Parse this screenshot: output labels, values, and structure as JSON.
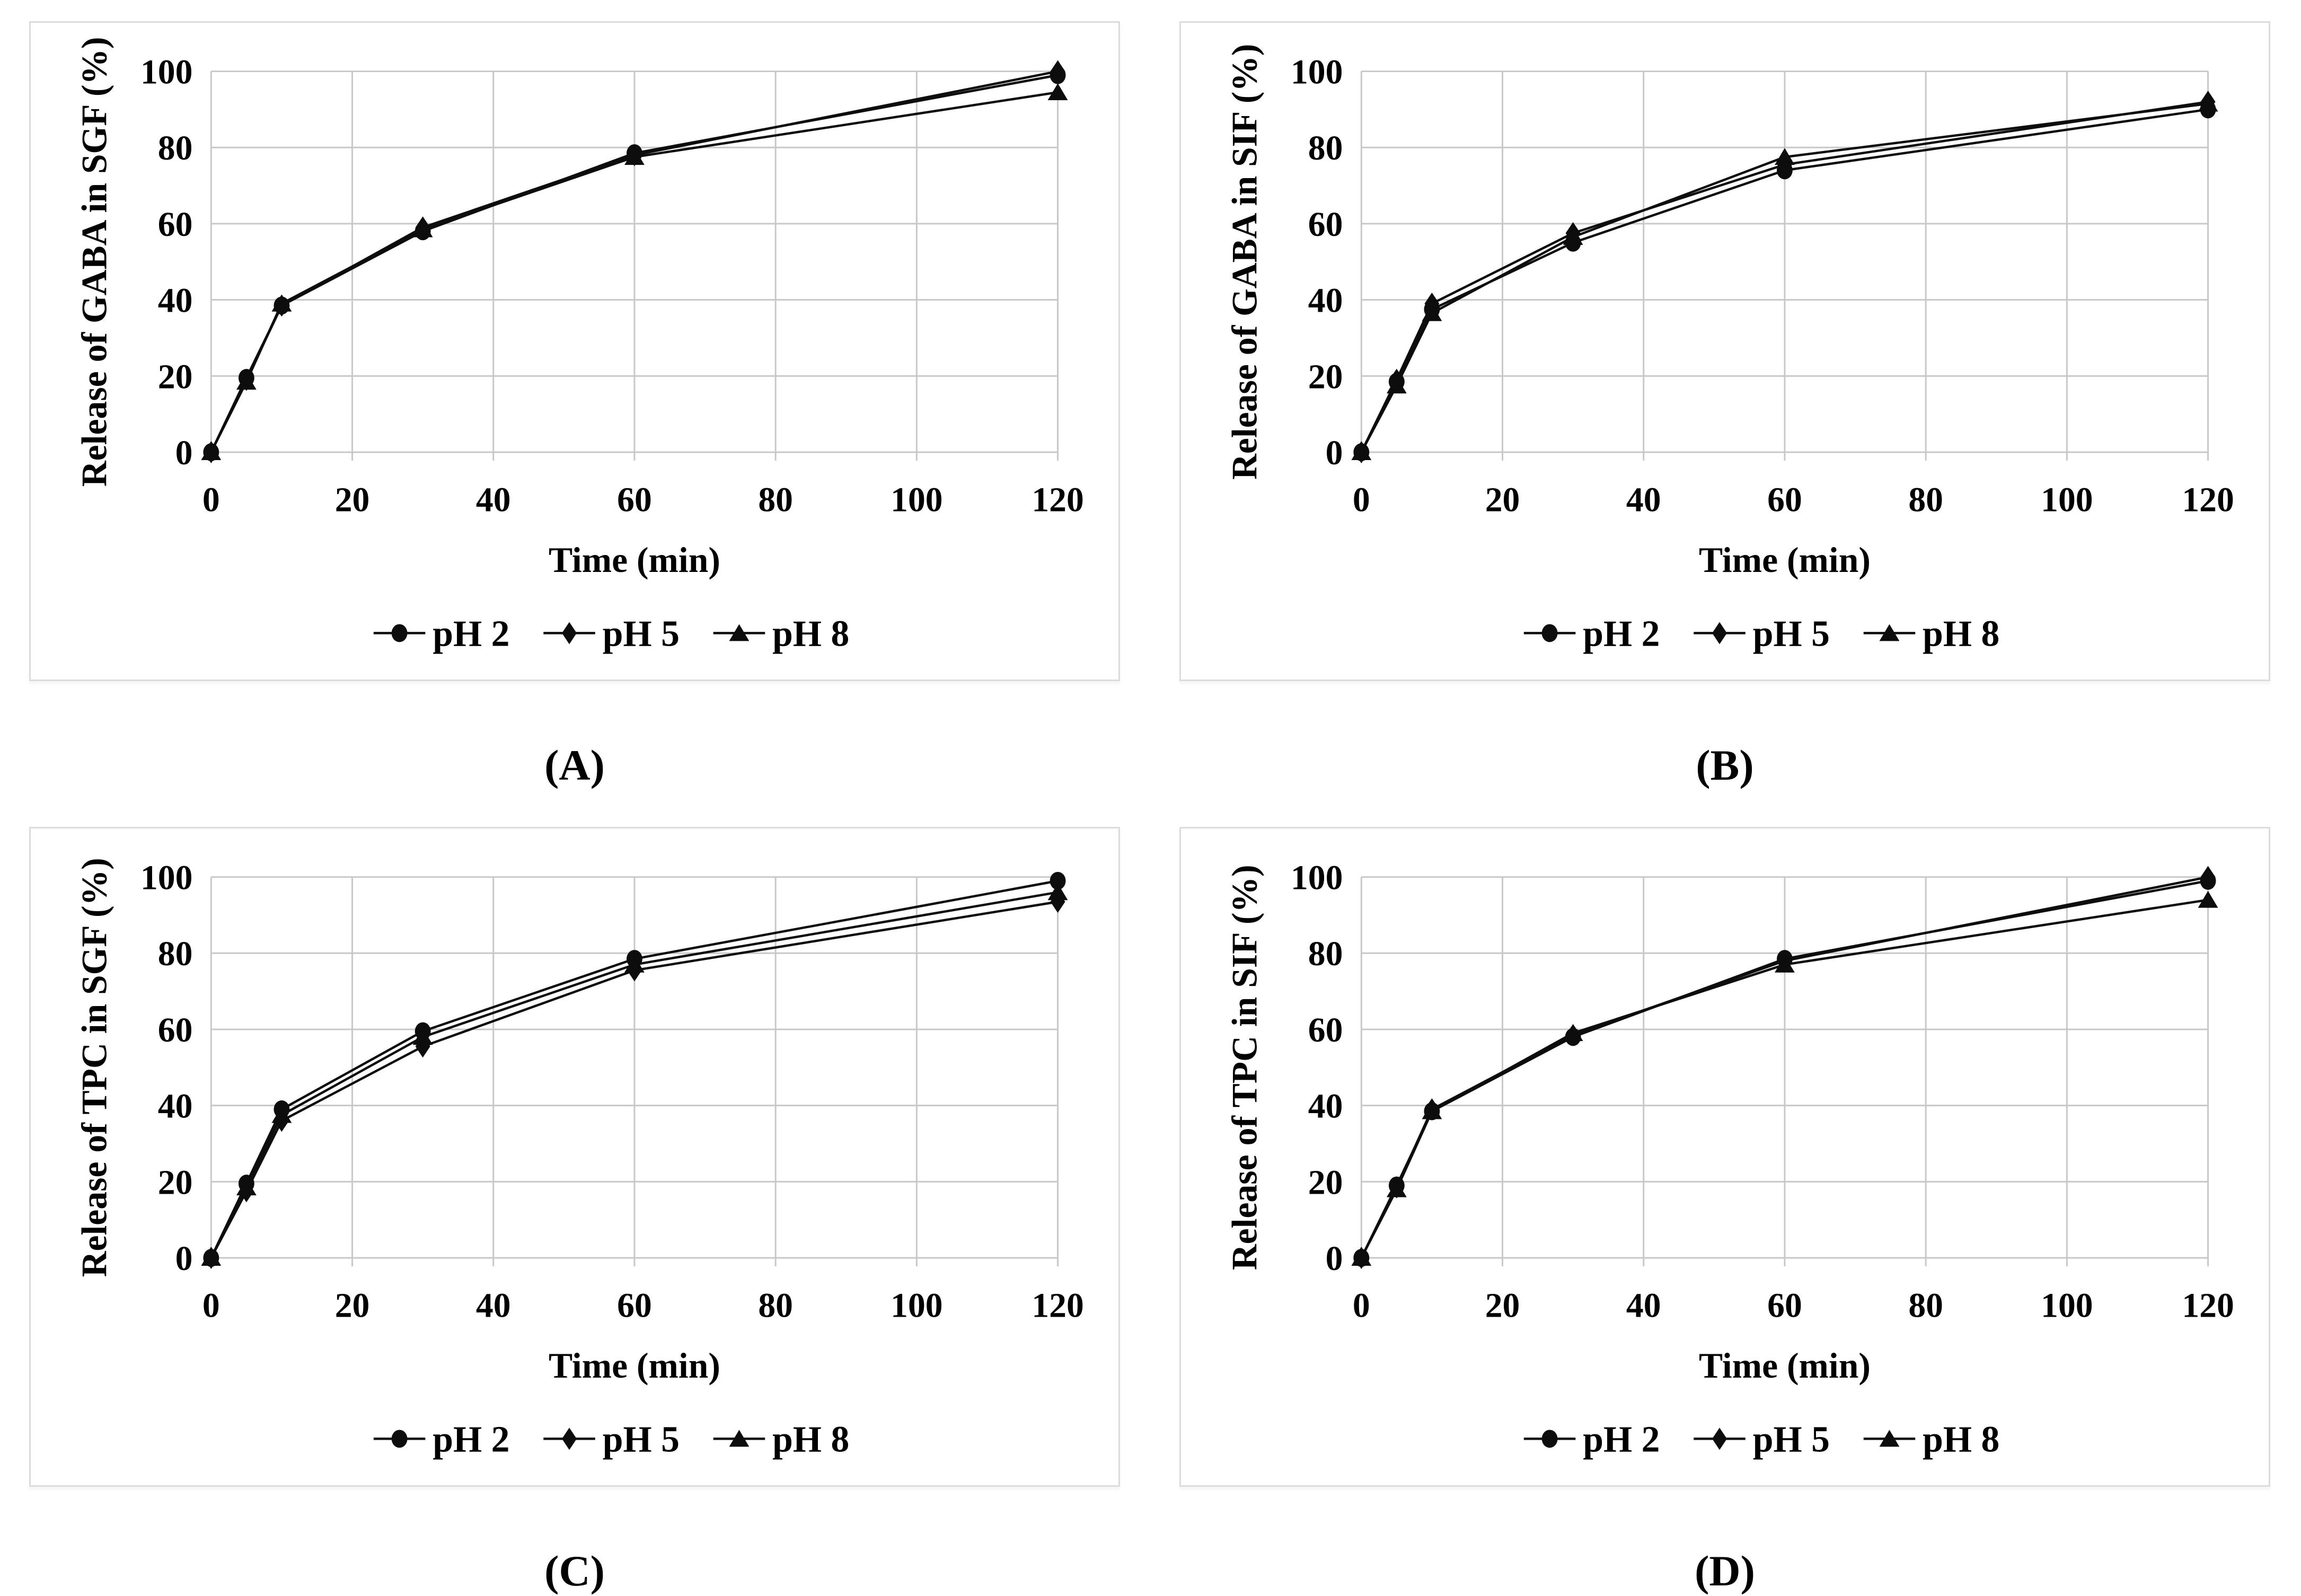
{
  "colors": {
    "line": "#0d0d0d",
    "grid": "#c8c8c8",
    "panel_border": "#dcdcdc",
    "text": "#000000",
    "background": "#ffffff"
  },
  "chart_data": [
    {
      "panel": "A",
      "type": "line",
      "title": "",
      "xlabel": "Time (min)",
      "ylabel": "Release of GABA in SGF (%)",
      "x": [
        0,
        5,
        10,
        30,
        60,
        120
      ],
      "xlim": [
        0,
        120
      ],
      "ylim": [
        0,
        100
      ],
      "xticks": [
        0,
        20,
        40,
        60,
        80,
        100,
        120
      ],
      "yticks": [
        0,
        20,
        40,
        60,
        80,
        100
      ],
      "grid": true,
      "legend_position": "bottom",
      "series": [
        {
          "name": "pH 2",
          "marker": "circle",
          "values": [
            0,
            19.5,
            38.5,
            58,
            78.5,
            99
          ]
        },
        {
          "name": "pH 5",
          "marker": "diamond",
          "values": [
            0,
            19,
            38.5,
            59,
            78,
            100
          ]
        },
        {
          "name": "pH 8",
          "marker": "triangle",
          "values": [
            0,
            18.5,
            39,
            58.5,
            77.5,
            94.5
          ]
        }
      ],
      "caption": "(A)"
    },
    {
      "panel": "B",
      "type": "line",
      "title": "",
      "xlabel": "Time (min)",
      "ylabel": "Release of GABA in SIF (%)",
      "x": [
        0,
        5,
        10,
        30,
        60,
        120
      ],
      "xlim": [
        0,
        120
      ],
      "ylim": [
        0,
        100
      ],
      "xticks": [
        0,
        20,
        40,
        60,
        80,
        100,
        120
      ],
      "yticks": [
        0,
        20,
        40,
        60,
        80,
        100
      ],
      "grid": true,
      "legend_position": "bottom",
      "series": [
        {
          "name": "pH 2",
          "marker": "circle",
          "values": [
            0,
            18.5,
            37.5,
            55,
            74,
            90
          ]
        },
        {
          "name": "pH 5",
          "marker": "diamond",
          "values": [
            0,
            19,
            39,
            57.5,
            75.5,
            92
          ]
        },
        {
          "name": "pH 8",
          "marker": "triangle",
          "values": [
            0,
            17.5,
            36.5,
            56.5,
            77.5,
            91.5
          ]
        }
      ],
      "caption": "(B)"
    },
    {
      "panel": "C",
      "type": "line",
      "title": "",
      "xlabel": "Time (min)",
      "ylabel": "Release of TPC in SGF (%)",
      "x": [
        0,
        5,
        10,
        30,
        60,
        120
      ],
      "xlim": [
        0,
        120
      ],
      "ylim": [
        0,
        100
      ],
      "xticks": [
        0,
        20,
        40,
        60,
        80,
        100,
        120
      ],
      "yticks": [
        0,
        20,
        40,
        60,
        80,
        100
      ],
      "grid": true,
      "legend_position": "bottom",
      "series": [
        {
          "name": "pH 2",
          "marker": "circle",
          "values": [
            0,
            19.5,
            39,
            59.5,
            78.5,
            99
          ]
        },
        {
          "name": "pH 5",
          "marker": "diamond",
          "values": [
            0,
            17.5,
            36,
            55.5,
            75.5,
            93.5
          ]
        },
        {
          "name": "pH 8",
          "marker": "triangle",
          "values": [
            0,
            18.5,
            37.5,
            58,
            77,
            96
          ]
        }
      ],
      "caption": "(C)"
    },
    {
      "panel": "D",
      "type": "line",
      "title": "",
      "xlabel": "Time (min)",
      "ylabel": "Release of TPC in SIF (%)",
      "x": [
        0,
        5,
        10,
        30,
        60,
        120
      ],
      "xlim": [
        0,
        120
      ],
      "ylim": [
        0,
        100
      ],
      "xticks": [
        0,
        20,
        40,
        60,
        80,
        100,
        120
      ],
      "yticks": [
        0,
        20,
        40,
        60,
        80,
        100
      ],
      "grid": true,
      "legend_position": "bottom",
      "series": [
        {
          "name": "pH 2",
          "marker": "circle",
          "values": [
            0,
            19,
            38.5,
            58,
            78.5,
            99
          ]
        },
        {
          "name": "pH 5",
          "marker": "diamond",
          "values": [
            0,
            18.5,
            39,
            58.5,
            78,
            100
          ]
        },
        {
          "name": "pH 8",
          "marker": "triangle",
          "values": [
            0,
            18,
            38.5,
            59,
            77,
            94
          ]
        }
      ],
      "caption": "(D)"
    }
  ]
}
